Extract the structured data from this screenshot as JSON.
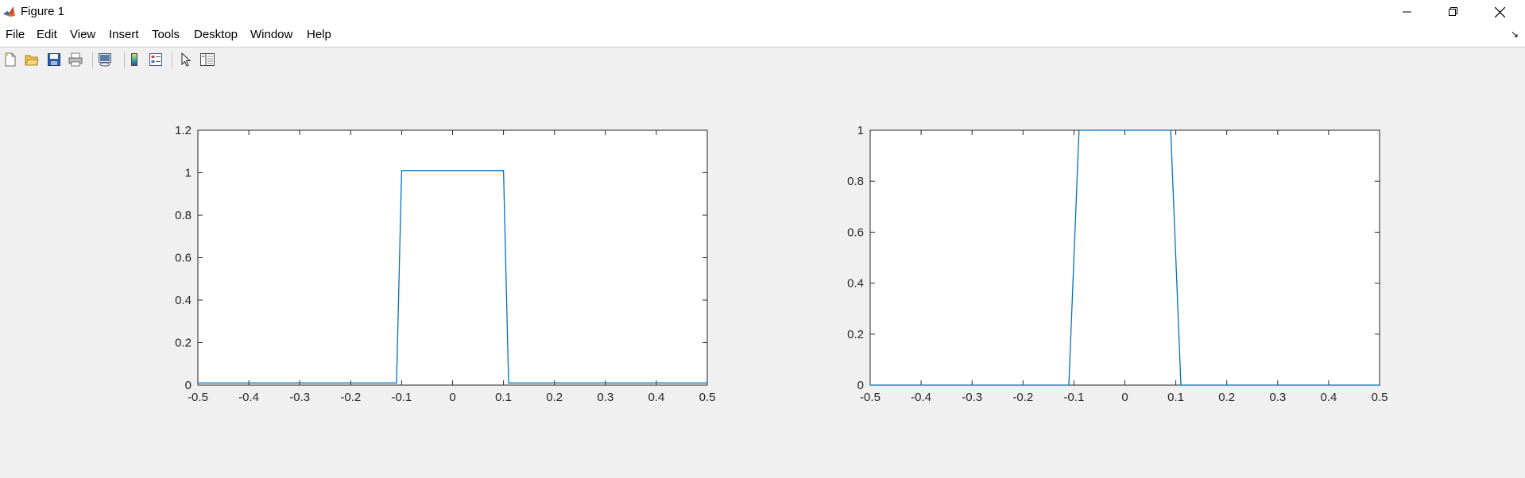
{
  "window": {
    "title": "Figure 1",
    "icons": [
      "matlab-icon",
      "minimize-icon",
      "restore-icon",
      "close-icon"
    ]
  },
  "menu": {
    "items": [
      "File",
      "Edit",
      "View",
      "Insert",
      "Tools",
      "Desktop",
      "Window",
      "Help"
    ]
  },
  "toolbar": {
    "icons": [
      "new-figure-icon",
      "open-file-icon",
      "save-icon",
      "print-icon",
      "link-plot-icon",
      "insert-colorbar-icon",
      "insert-legend-icon",
      "edit-plot-icon",
      "property-inspector-icon"
    ]
  },
  "chart_data": [
    {
      "type": "line",
      "xlim": [
        -0.5,
        0.5
      ],
      "ylim": [
        0,
        1.2
      ],
      "xticks": [
        "-0.5",
        "-0.4",
        "-0.3",
        "-0.2",
        "-0.1",
        "0",
        "0.1",
        "0.2",
        "0.3",
        "0.4",
        "0.5"
      ],
      "yticks": [
        "0",
        "0.2",
        "0.4",
        "0.6",
        "0.8",
        "1",
        "1.2"
      ],
      "line_color": "#0072bd",
      "grid": false,
      "series": [
        {
          "x": [
            -0.5,
            -0.11,
            -0.1,
            0.1,
            0.11,
            0.5
          ],
          "y": [
            0.01,
            0.01,
            1.01,
            1.01,
            0.01,
            0.01
          ]
        }
      ]
    },
    {
      "type": "line",
      "xlim": [
        -0.5,
        0.5
      ],
      "ylim": [
        0,
        1
      ],
      "xticks": [
        "-0.5",
        "-0.4",
        "-0.3",
        "-0.2",
        "-0.1",
        "0",
        "0.1",
        "0.2",
        "0.3",
        "0.4",
        "0.5"
      ],
      "yticks": [
        "0",
        "0.2",
        "0.4",
        "0.6",
        "0.8",
        "1"
      ],
      "line_color": "#0072bd",
      "grid": false,
      "series": [
        {
          "x": [
            -0.5,
            -0.11,
            -0.09,
            0.09,
            0.11,
            0.5
          ],
          "y": [
            0,
            0,
            1,
            1,
            0,
            0
          ]
        }
      ]
    }
  ]
}
